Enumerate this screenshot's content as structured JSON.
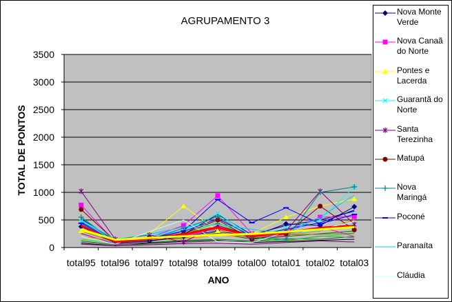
{
  "chart_data": {
    "type": "line",
    "title": "AGRUPAMENTO 3",
    "xlabel": "ANO",
    "ylabel": "TOTAL DE PONTOS",
    "ylim": [
      0,
      3500
    ],
    "yticks": [
      "0",
      "500",
      "1000",
      "1500",
      "2000",
      "2500",
      "3000",
      "3500"
    ],
    "categories": [
      "total95",
      "total96",
      "total97",
      "total98",
      "total99",
      "total00",
      "total01",
      "total02",
      "total03"
    ],
    "grid": "horizontal",
    "legend_position": "right",
    "plot_background": "#c0c0c0",
    "series": [
      {
        "name": "Nova Monte Verde",
        "color": "#000080",
        "marker": "diamond",
        "values": [
          380,
          80,
          120,
          200,
          300,
          200,
          430,
          400,
          740
        ]
      },
      {
        "name": "Nova Canaã do Norte",
        "color": "#ff00ff",
        "marker": "square",
        "values": [
          770,
          100,
          180,
          400,
          940,
          250,
          300,
          550,
          560
        ]
      },
      {
        "name": "Pontes e Lacerda",
        "color": "#ffff00",
        "marker": "triangle",
        "values": [
          300,
          150,
          250,
          750,
          300,
          250,
          550,
          750,
          880
        ]
      },
      {
        "name": "Guarantã do Norte",
        "color": "#00ffff",
        "marker": "x",
        "values": [
          480,
          120,
          200,
          300,
          620,
          200,
          350,
          500,
          1100
        ]
      },
      {
        "name": "Santa Terezinha",
        "color": "#800080",
        "marker": "star",
        "values": [
          1020,
          150,
          230,
          100,
          400,
          220,
          300,
          1020,
          420
        ]
      },
      {
        "name": "Matupá",
        "color": "#800000",
        "marker": "circle",
        "values": [
          690,
          120,
          180,
          250,
          500,
          150,
          250,
          750,
          320
        ]
      },
      {
        "name": "Nova Maringá",
        "color": "#008080",
        "marker": "plus",
        "values": [
          550,
          100,
          150,
          350,
          560,
          180,
          150,
          1000,
          1100
        ]
      },
      {
        "name": "Poconé",
        "color": "#0000ff",
        "marker": "dash",
        "values": [
          440,
          110,
          160,
          300,
          870,
          450,
          720,
          430,
          600
        ]
      },
      {
        "name": "Paranaíta",
        "color": "#00ccff",
        "marker": "none",
        "values": [
          500,
          150,
          240,
          370,
          420,
          330,
          250,
          550,
          950
        ]
      },
      {
        "name": "Cláudia",
        "color": "#ccffff",
        "marker": "none",
        "values": [
          200,
          60,
          290,
          500,
          100,
          90,
          280,
          330,
          470
        ]
      }
    ],
    "background_lines": [
      {
        "color": "#ff0000",
        "values": [
          380,
          90,
          150,
          220,
          350,
          190,
          260,
          340,
          370
        ]
      },
      {
        "color": "#ff0000",
        "values": [
          420,
          110,
          170,
          260,
          380,
          220,
          280,
          370,
          410
        ]
      },
      {
        "color": "#ffff00",
        "values": [
          340,
          140,
          180,
          200,
          210,
          230,
          270,
          320,
          390
        ]
      },
      {
        "color": "#008000",
        "values": [
          250,
          70,
          120,
          180,
          260,
          150,
          200,
          250,
          300
        ]
      },
      {
        "color": "#008000",
        "values": [
          120,
          50,
          90,
          130,
          150,
          120,
          160,
          150,
          200
        ]
      },
      {
        "color": "#00ff00",
        "values": [
          150,
          80,
          100,
          250,
          450,
          180,
          120,
          200,
          250
        ]
      },
      {
        "color": "#000000",
        "values": [
          80,
          30,
          80,
          110,
          130,
          90,
          110,
          130,
          150
        ]
      },
      {
        "color": "#0000ff",
        "values": [
          460,
          130,
          170,
          290,
          520,
          210,
          330,
          450,
          680
        ]
      },
      {
        "color": "#808000",
        "values": [
          300,
          100,
          130,
          190,
          280,
          170,
          230,
          240,
          260
        ]
      },
      {
        "color": "#ff00ff",
        "values": [
          260,
          60,
          110,
          210,
          330,
          160,
          210,
          380,
          200
        ]
      },
      {
        "color": "#ff8000",
        "values": [
          200,
          120,
          150,
          160,
          220,
          200,
          220,
          300,
          500
        ]
      },
      {
        "color": "#808080",
        "values": [
          100,
          40,
          60,
          90,
          120,
          110,
          130,
          210,
          180
        ]
      },
      {
        "color": "#800080",
        "values": [
          60,
          30,
          50,
          70,
          80,
          60,
          90,
          120,
          100
        ]
      },
      {
        "color": "#00ffff",
        "values": [
          420,
          130,
          260,
          280,
          300,
          190,
          240,
          310,
          420
        ]
      },
      {
        "color": "#000080",
        "values": [
          520,
          120,
          180,
          240,
          600,
          230,
          400,
          500,
          660
        ]
      }
    ]
  }
}
